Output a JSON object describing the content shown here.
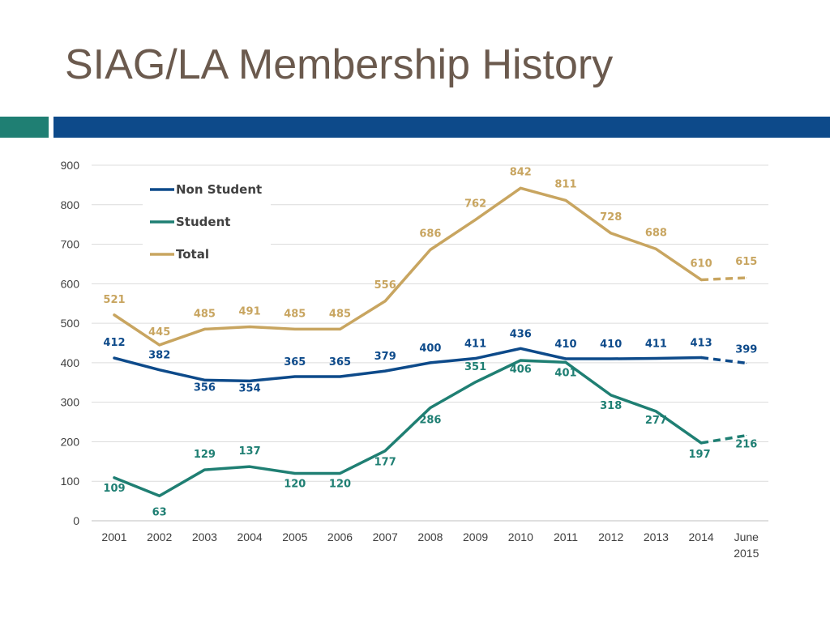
{
  "slide": {
    "title": "SIAG/LA Membership History"
  },
  "chart_data": {
    "type": "line",
    "title": "SIAG/LA Membership History",
    "xlabel": "",
    "ylabel": "",
    "ylim": [
      0,
      900
    ],
    "yticks": [
      "0",
      "100",
      "200",
      "300",
      "400",
      "500",
      "600",
      "700",
      "800",
      "900"
    ],
    "grid": true,
    "legend_position": "top-left",
    "categories": [
      "2001",
      "2002",
      "2003",
      "2004",
      "2005",
      "2006",
      "2007",
      "2008",
      "2009",
      "2010",
      "2011",
      "2012",
      "2013",
      "2014",
      "June 2015"
    ],
    "category_lines": [
      [
        "2001"
      ],
      [
        "2002"
      ],
      [
        "2003"
      ],
      [
        "2004"
      ],
      [
        "2005"
      ],
      [
        "2006"
      ],
      [
        "2007"
      ],
      [
        "2008"
      ],
      [
        "2009"
      ],
      [
        "2010"
      ],
      [
        "2011"
      ],
      [
        "2012"
      ],
      [
        "2013"
      ],
      [
        "2014"
      ],
      [
        "June",
        "2015"
      ]
    ],
    "dashed_from_index": 13,
    "series": [
      {
        "name": "Non Student",
        "color": "#0d4a8a",
        "values": [
          412,
          382,
          356,
          354,
          365,
          365,
          379,
          400,
          411,
          436,
          410,
          410,
          411,
          413,
          399
        ],
        "labels": [
          "412",
          "382",
          "356",
          "354",
          "365",
          "365",
          "379",
          "400",
          "411",
          "436",
          "410",
          "410",
          "411",
          "413",
          "399"
        ]
      },
      {
        "name": "Student",
        "color": "#1f7f73",
        "values": [
          109,
          63,
          129,
          137,
          120,
          120,
          177,
          286,
          351,
          406,
          401,
          318,
          277,
          197,
          216
        ],
        "labels": [
          "109",
          "63",
          "129",
          "137",
          "120",
          "120",
          "177",
          "286",
          "351",
          "406",
          "401",
          "318",
          "277",
          "197",
          "216"
        ]
      },
      {
        "name": "Total",
        "color": "#c8a560",
        "values": [
          521,
          445,
          485,
          491,
          485,
          485,
          556,
          686,
          762,
          842,
          811,
          728,
          688,
          610,
          615
        ],
        "labels": [
          "521",
          "445",
          "485",
          "491",
          "485",
          "485",
          "556",
          "686",
          "762",
          "842",
          "811",
          "728",
          "688",
          "610",
          "615"
        ]
      }
    ]
  }
}
